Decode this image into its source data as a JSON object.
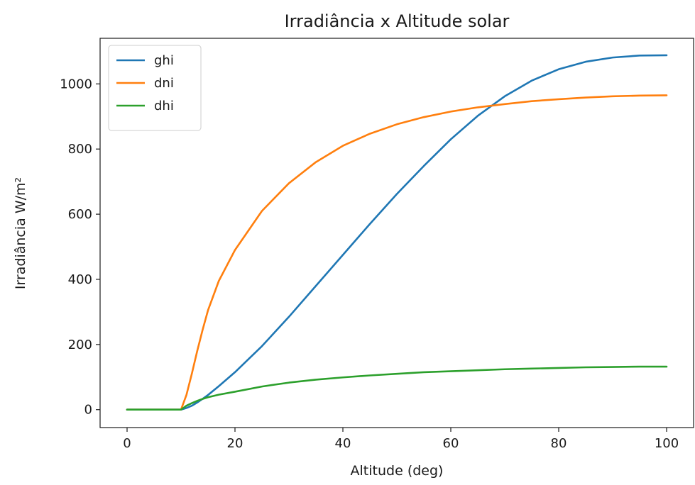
{
  "chart_data": {
    "type": "line",
    "title": "Irradiância x Altitude solar",
    "xlabel": "Altitude (deg)",
    "ylabel": "Irradiância W/m²",
    "xlim": [
      -5,
      105
    ],
    "ylim": [
      -55,
      1140
    ],
    "xticks": [
      0,
      20,
      40,
      60,
      80,
      100
    ],
    "yticks": [
      0,
      200,
      400,
      600,
      800,
      1000
    ],
    "grid": false,
    "legend_position": "top-left",
    "x": [
      0,
      5,
      10,
      11,
      12,
      13,
      14,
      15,
      17,
      20,
      25,
      30,
      35,
      40,
      45,
      50,
      55,
      60,
      65,
      70,
      75,
      80,
      85,
      90,
      95,
      100
    ],
    "series": [
      {
        "name": "ghi",
        "color": "#1f77b4",
        "values": [
          0,
          0,
          0,
          5,
          12,
          22,
          33,
          45,
          72,
          115,
          195,
          285,
          380,
          475,
          570,
          662,
          748,
          830,
          902,
          962,
          1010,
          1045,
          1068,
          1081,
          1087,
          1088
        ]
      },
      {
        "name": "dni",
        "color": "#ff7f0e",
        "values": [
          0,
          0,
          0,
          45,
          110,
          180,
          245,
          305,
          395,
          490,
          610,
          695,
          760,
          810,
          847,
          876,
          898,
          915,
          928,
          938,
          947,
          953,
          958,
          962,
          964,
          965
        ]
      },
      {
        "name": "dhi",
        "color": "#2ca02c",
        "values": [
          0,
          0,
          0,
          12,
          20,
          27,
          33,
          38,
          46,
          55,
          71,
          83,
          92,
          99,
          105,
          110,
          115,
          118,
          121,
          124,
          126,
          128,
          130,
          131,
          132,
          132
        ]
      }
    ]
  }
}
